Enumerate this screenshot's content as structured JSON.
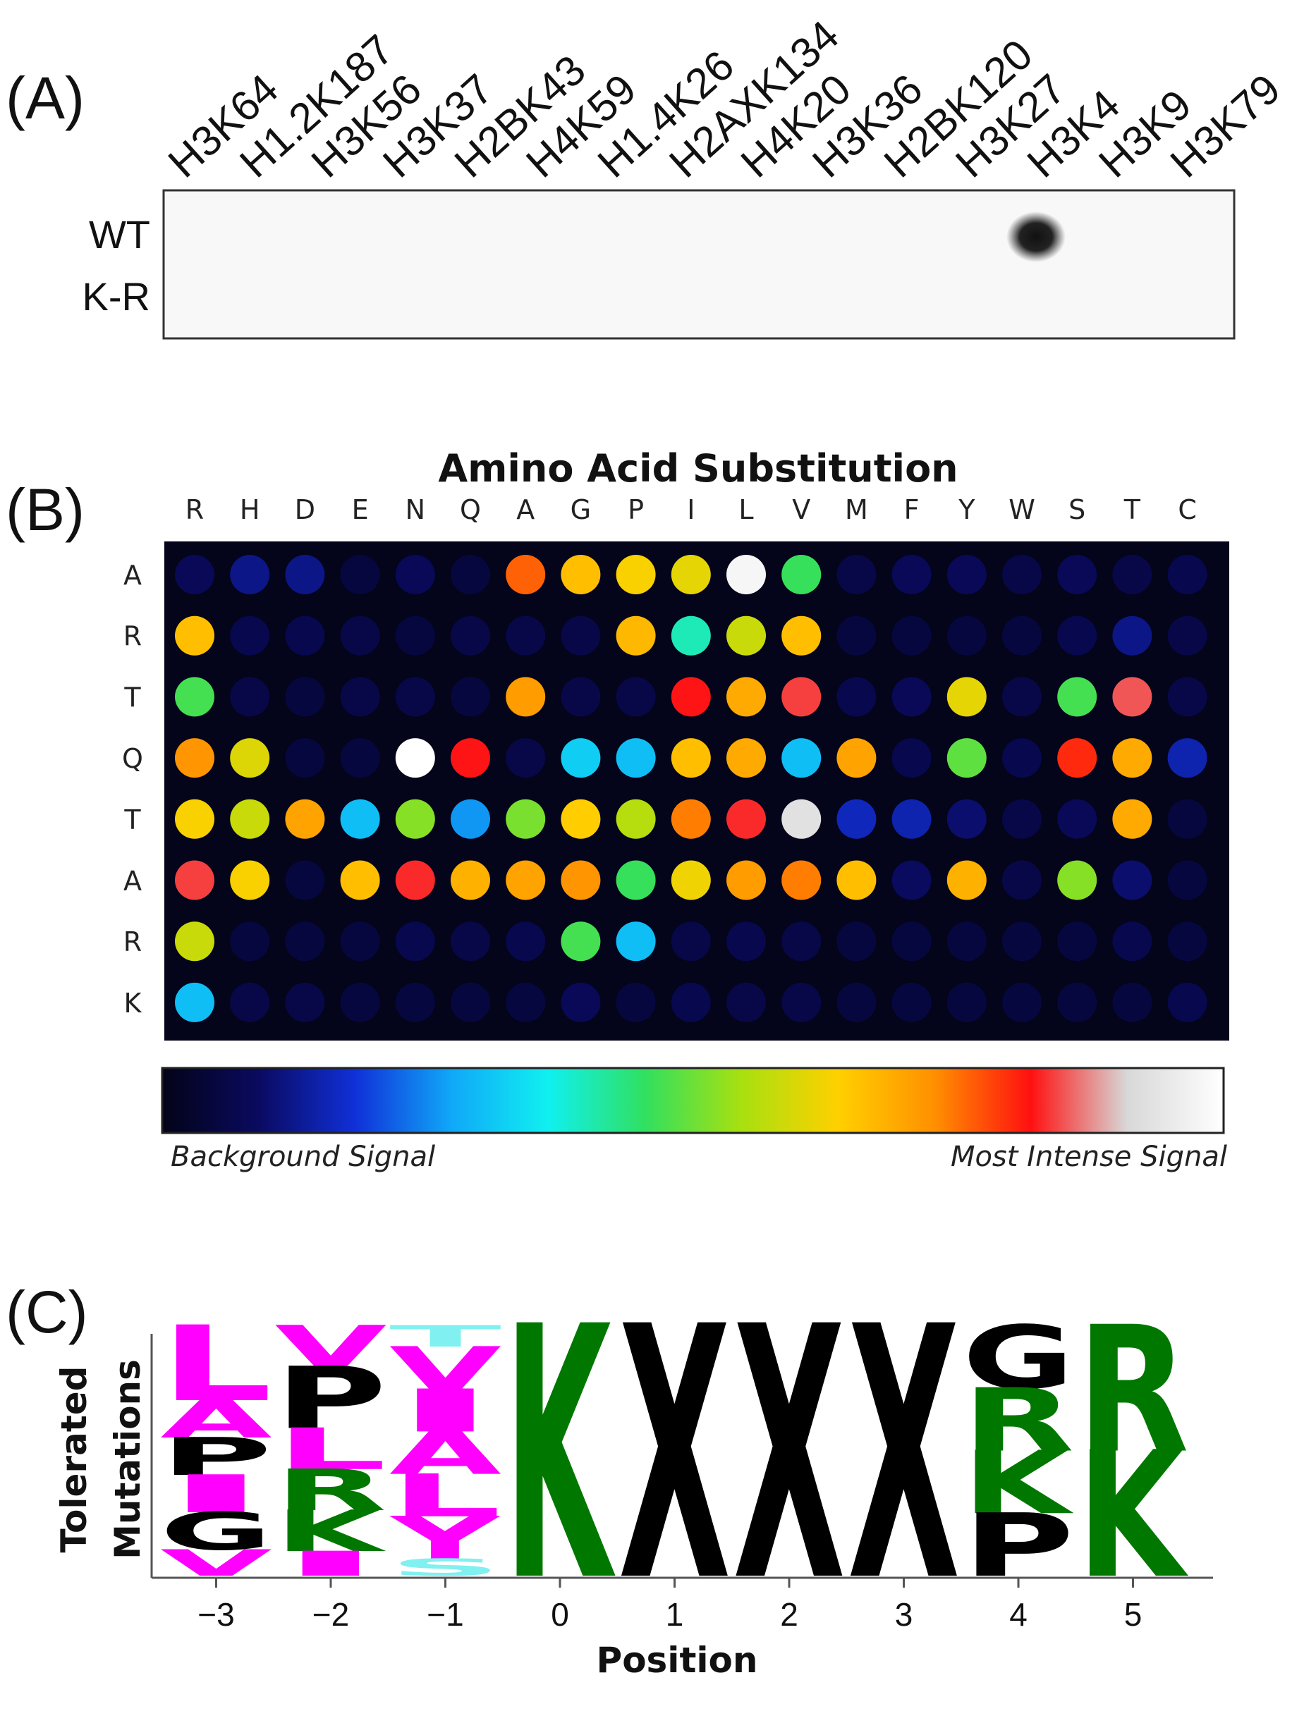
{
  "panel_a": {
    "label": "(A)",
    "sites": [
      "H3K64",
      "H1.2K187",
      "H3K56",
      "H3K37",
      "H2BK43",
      "H4K59",
      "H1.4K26",
      "H2AXK134",
      "H4K20",
      "H3K36",
      "H2BK120",
      "H3K27",
      "H3K4",
      "H3K9",
      "H3K79"
    ],
    "rows": [
      "WT",
      "K-R"
    ],
    "spots": [
      {
        "row": "WT",
        "site": "H3K4",
        "intensity": 1.0
      }
    ]
  },
  "panel_b": {
    "label": "(B)",
    "title": "Amino Acid Substitution",
    "columns": [
      "R",
      "H",
      "D",
      "E",
      "N",
      "Q",
      "A",
      "G",
      "P",
      "I",
      "L",
      "V",
      "M",
      "F",
      "Y",
      "W",
      "S",
      "T",
      "C"
    ],
    "rows": [
      "A",
      "R",
      "T",
      "Q",
      "T",
      "A",
      "R",
      "K"
    ],
    "grid": [
      [
        0.08,
        0.12,
        0.12,
        0.05,
        0.08,
        0.05,
        0.76,
        0.66,
        0.63,
        0.61,
        0.98,
        0.46,
        0.06,
        0.08,
        0.08,
        0.06,
        0.08,
        0.06,
        0.07
      ],
      [
        0.66,
        0.07,
        0.07,
        0.06,
        0.05,
        0.06,
        0.06,
        0.06,
        0.67,
        0.4,
        0.58,
        0.66,
        0.05,
        0.05,
        0.05,
        0.05,
        0.07,
        0.12,
        0.06
      ],
      [
        0.47,
        0.06,
        0.05,
        0.06,
        0.06,
        0.05,
        0.71,
        0.06,
        0.06,
        0.82,
        0.69,
        0.84,
        0.07,
        0.08,
        0.61,
        0.06,
        0.47,
        0.85,
        0.06
      ],
      [
        0.72,
        0.6,
        0.05,
        0.05,
        1.0,
        0.82,
        0.06,
        0.32,
        0.3,
        0.66,
        0.69,
        0.3,
        0.7,
        0.07,
        0.49,
        0.07,
        0.8,
        0.69,
        0.15
      ],
      [
        0.63,
        0.58,
        0.7,
        0.3,
        0.52,
        0.26,
        0.51,
        0.64,
        0.56,
        0.74,
        0.83,
        0.93,
        0.16,
        0.15,
        0.1,
        0.06,
        0.08,
        0.69,
        0.05
      ],
      [
        0.84,
        0.63,
        0.05,
        0.66,
        0.83,
        0.68,
        0.7,
        0.72,
        0.46,
        0.62,
        0.71,
        0.74,
        0.66,
        0.09,
        0.68,
        0.06,
        0.52,
        0.1,
        0.05
      ],
      [
        0.58,
        0.05,
        0.05,
        0.05,
        0.07,
        0.06,
        0.07,
        0.47,
        0.3,
        0.06,
        0.07,
        0.06,
        0.05,
        0.05,
        0.05,
        0.05,
        0.05,
        0.07,
        0.05
      ],
      [
        0.3,
        0.06,
        0.06,
        0.05,
        0.05,
        0.05,
        0.05,
        0.08,
        0.05,
        0.07,
        0.06,
        0.06,
        0.05,
        0.05,
        0.05,
        0.05,
        0.05,
        0.05,
        0.07
      ]
    ],
    "colorbar_left": "Background Signal",
    "colorbar_right": "Most Intense Signal",
    "colorbar_stops": [
      "#030318",
      "#0a0a60",
      "#1030d8",
      "#10a8f8",
      "#10f0f0",
      "#30e060",
      "#a8e010",
      "#ffd000",
      "#ff9000",
      "#ff1010",
      "#d8d8d8",
      "#ffffff"
    ]
  },
  "panel_c": {
    "label": "(C)",
    "ylabel": [
      "Tolerated",
      "Mutations"
    ],
    "xlabel": "Position",
    "positions": [
      "−3",
      "−2",
      "−1",
      "0",
      "1",
      "2",
      "3",
      "4",
      "5"
    ],
    "colors": {
      "magenta": "#ff00ff",
      "black": "#000000",
      "cyan": "#80f0f0",
      "green": "#007800"
    },
    "stacks": [
      [
        {
          "l": "L",
          "c": "magenta",
          "w": 2
        },
        {
          "l": "A",
          "c": "magenta",
          "w": 1
        },
        {
          "l": "P",
          "c": "black",
          "w": 1
        },
        {
          "l": "I",
          "c": "magenta",
          "w": 1
        },
        {
          "l": "G",
          "c": "black",
          "w": 1
        },
        {
          "l": "V",
          "c": "magenta",
          "w": 0.7
        }
      ],
      [
        {
          "l": "V",
          "c": "magenta",
          "w": 1
        },
        {
          "l": "P",
          "c": "black",
          "w": 1.5
        },
        {
          "l": "L",
          "c": "magenta",
          "w": 1
        },
        {
          "l": "R",
          "c": "green",
          "w": 1
        },
        {
          "l": "K",
          "c": "green",
          "w": 1
        },
        {
          "l": "I",
          "c": "magenta",
          "w": 0.6
        }
      ],
      [
        {
          "l": "T",
          "c": "cyan",
          "w": 0.5
        },
        {
          "l": "V",
          "c": "magenta",
          "w": 1
        },
        {
          "l": "I",
          "c": "magenta",
          "w": 1
        },
        {
          "l": "A",
          "c": "magenta",
          "w": 1
        },
        {
          "l": "L",
          "c": "magenta",
          "w": 1
        },
        {
          "l": "Y",
          "c": "magenta",
          "w": 1
        },
        {
          "l": "S",
          "c": "cyan",
          "w": 0.4
        }
      ],
      [
        {
          "l": "K",
          "c": "green",
          "w": 1
        }
      ],
      [
        {
          "l": "X",
          "c": "black",
          "w": 1
        }
      ],
      [
        {
          "l": "X",
          "c": "black",
          "w": 1
        }
      ],
      [
        {
          "l": "X",
          "c": "black",
          "w": 1
        }
      ],
      [
        {
          "l": "G",
          "c": "black",
          "w": 1
        },
        {
          "l": "R",
          "c": "green",
          "w": 1
        },
        {
          "l": "K",
          "c": "green",
          "w": 1
        },
        {
          "l": "P",
          "c": "black",
          "w": 1
        }
      ],
      [
        {
          "l": "R",
          "c": "green",
          "w": 1
        },
        {
          "l": "K",
          "c": "green",
          "w": 1
        }
      ]
    ]
  }
}
